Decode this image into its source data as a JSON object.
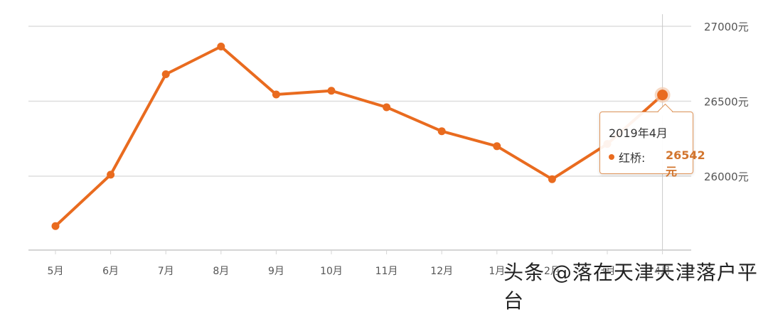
{
  "chart_data": {
    "type": "line",
    "title": "",
    "xlabel": "",
    "ylabel": "",
    "categories": [
      "5月",
      "6月",
      "7月",
      "8月",
      "9月",
      "10月",
      "11月",
      "12月",
      "1月",
      "2月",
      "3月",
      "4月"
    ],
    "series": [
      {
        "name": "红桥",
        "color": "#e96b1f",
        "values": [
          25667,
          26010,
          26680,
          26865,
          26545,
          26570,
          26460,
          26300,
          26200,
          25980,
          26215,
          26542
        ]
      }
    ],
    "y_ticks": [
      "27000元",
      "26500元",
      "26000元"
    ],
    "y_tick_values": [
      27000,
      26500,
      26000
    ],
    "ylim": [
      25500,
      27000
    ],
    "grid": true,
    "y_axis_position": "right",
    "legend": "none"
  },
  "tooltip": {
    "title": "2019年4月",
    "series_label": "红桥:",
    "value": "26542元"
  },
  "watermark": "头条 @落在天津天津落户平台"
}
